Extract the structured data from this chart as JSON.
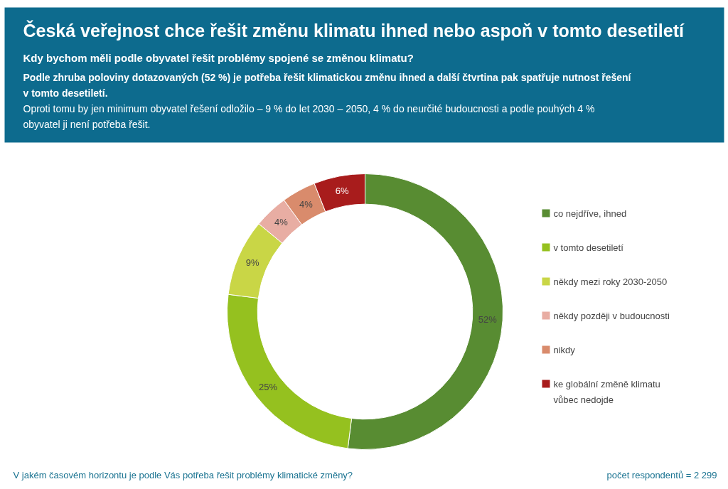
{
  "chart_data": {
    "type": "donut",
    "title": "Česká veřejnost chce řešit změnu klimatu ihned nebo aspoň v tomto desetiletí",
    "subtitle": "Kdy bychom měli podle obyvatel řešit problémy spojené se změnou klimatu?",
    "annotations": [
      "Podle zhruba poloviny dotazovaných (52 %) je potřeba řešit klimatickou změnu ihned a další čtvrtina pak spatřuje nutnost řešení v tomto desetiletí.",
      "Oproti tomu by jen minimum obyvatel řešení odložilo – 9 % do let 2030 – 2050, 4 % do neurčité budoucnosti a podle pouhých 4 % obyvatel ji není potřeba řešit.",
      "V jakém časovém horizontu je podle Vás potřeba řešit problémy klimatické změny?",
      "počet respondentů = 2 299"
    ],
    "categories": [
      "co nejdříve, ihned",
      "v tomto desetiletí",
      "někdy mezi roky 2030-2050",
      "někdy později v budoucnosti",
      "nikdy",
      "ke globální změně klimatu vůbec nedojde"
    ],
    "values": [
      52,
      25,
      9,
      4,
      4,
      6
    ],
    "colors": [
      "#588c32",
      "#95c11f",
      "#c9d646",
      "#e8ada3",
      "#d98b6c",
      "#a81c1c"
    ],
    "value_labels": [
      "52%",
      "25%",
      "9%",
      "4%",
      "4%",
      "6%"
    ],
    "legend": "right"
  }
}
